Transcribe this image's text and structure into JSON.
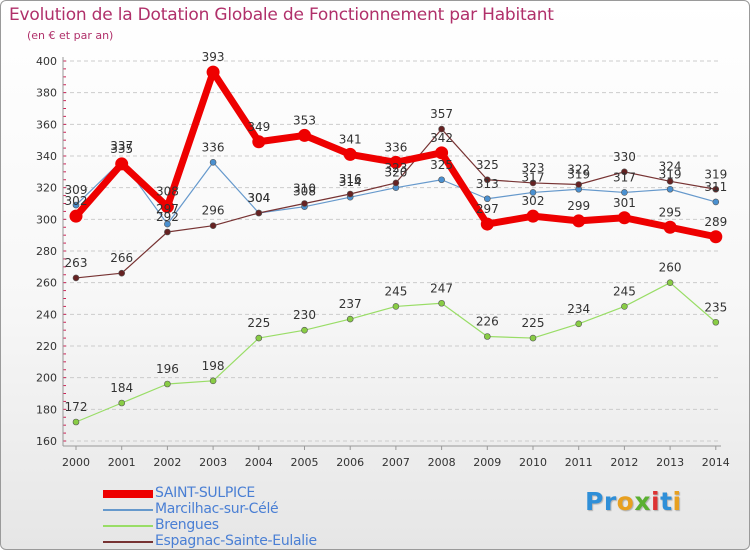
{
  "title": "Evolution de la Dotation Globale de Fonctionnement par Habitant",
  "subtitle": "(en € et par an)",
  "logo": "Proxiti",
  "colors": {
    "title": "#b0306a",
    "grid": "#cccccc",
    "tick_marks": "#cc2255"
  },
  "chart_data": {
    "type": "line",
    "title": "Evolution de la Dotation Globale de Fonctionnement par Habitant",
    "subtitle": "(en € et par an)",
    "xlabel": "",
    "ylabel": "",
    "categories": [
      "2000",
      "2001",
      "2002",
      "2003",
      "2004",
      "2005",
      "2006",
      "2007",
      "2008",
      "2009",
      "2010",
      "2011",
      "2012",
      "2013",
      "2014"
    ],
    "ylim": [
      160,
      400
    ],
    "yticks": [
      160,
      180,
      200,
      220,
      240,
      260,
      280,
      300,
      320,
      340,
      360,
      380,
      400
    ],
    "grid": "horizontal",
    "legend_position": "bottom-left",
    "series": [
      {
        "name": "SAINT-SULPICE",
        "color": "#ee0000",
        "point_color": "#ee0000",
        "label_color": "#333333",
        "values": [
          302,
          335,
          308,
          393,
          349,
          353,
          341,
          336,
          342,
          297,
          302,
          299,
          301,
          295,
          289
        ],
        "labels": [
          "302",
          "335",
          "308",
          "393",
          "349",
          "353",
          "341",
          "336",
          "342",
          "297",
          "302",
          "299",
          "301",
          "295",
          "289"
        ]
      },
      {
        "name": "Marcilhac-sur-Célé",
        "color": "#6699cc",
        "point_color": "#4a90d0",
        "label_color": "#333333",
        "values": [
          309,
          337,
          297,
          336,
          304,
          308,
          314,
          320,
          325,
          313,
          317,
          319,
          317,
          319,
          311
        ],
        "labels": [
          "309",
          "337",
          "297",
          "336",
          "304",
          "308",
          "314",
          "320",
          "325",
          "313",
          "317",
          "319",
          "317",
          "319",
          "311"
        ]
      },
      {
        "name": "Brengues",
        "color": "#99dd66",
        "point_color": "#88cc44",
        "label_color": "#333333",
        "values": [
          172,
          184,
          196,
          198,
          225,
          230,
          237,
          245,
          247,
          226,
          225,
          234,
          245,
          260,
          235
        ],
        "labels": [
          "172",
          "184",
          "196",
          "198",
          "225",
          "230",
          "237",
          "245",
          "247",
          "226",
          "225",
          "234",
          "245",
          "260",
          "235"
        ]
      },
      {
        "name": "Espagnac-Sainte-Eulalie",
        "color": "#773333",
        "point_color": "#662222",
        "label_color": "#333333",
        "values": [
          263,
          266,
          292,
          296,
          304,
          310,
          316,
          323,
          357,
          325,
          323,
          322,
          330,
          324,
          319
        ],
        "labels": [
          "263",
          "266",
          "292",
          "296",
          "304",
          "310",
          "316",
          "323",
          "357",
          "325",
          "323",
          "322",
          "330",
          "324",
          "319"
        ]
      }
    ]
  }
}
